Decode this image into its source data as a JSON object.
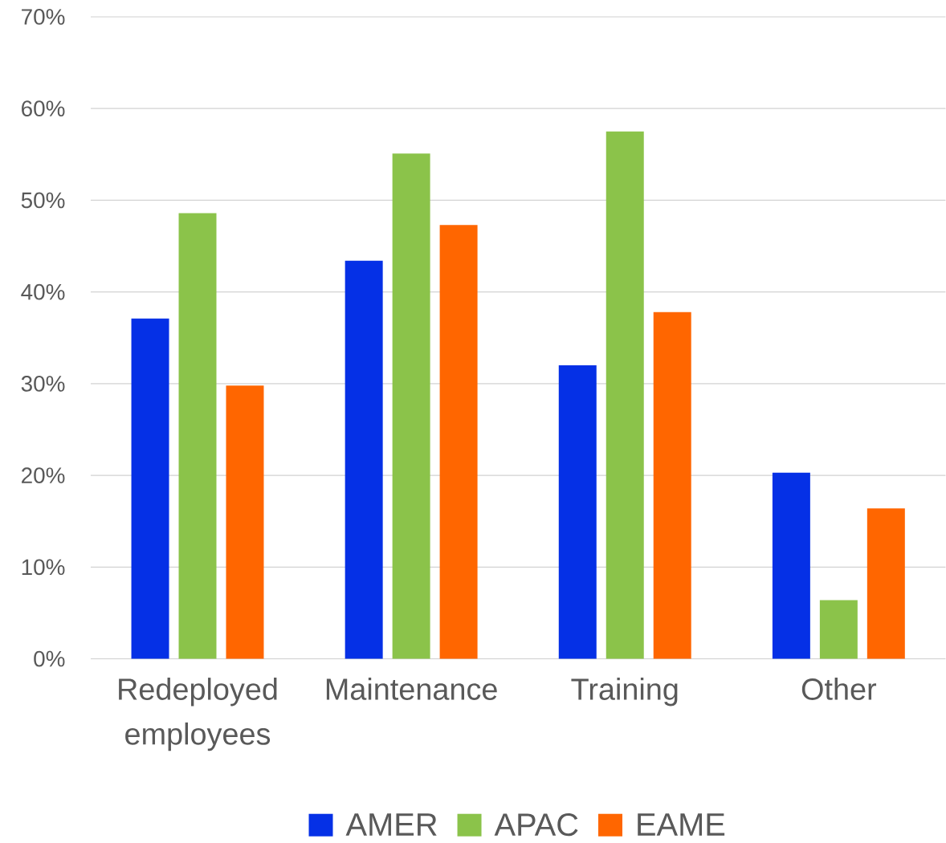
{
  "chart_data": {
    "type": "bar",
    "categories": [
      "Redeployed employees",
      "Maintenance",
      "Training",
      "Other"
    ],
    "series": [
      {
        "name": "AMER",
        "color": "#0530e6",
        "values": [
          37.1,
          43.4,
          32.0,
          20.3
        ]
      },
      {
        "name": "APAC",
        "color": "#8bc34a",
        "values": [
          48.6,
          55.1,
          57.5,
          6.4
        ]
      },
      {
        "name": "EAME",
        "color": "#ff6600",
        "values": [
          29.8,
          47.3,
          37.8,
          16.4
        ]
      }
    ],
    "ylim": [
      0,
      70
    ],
    "yticks": [
      {
        "value": 0,
        "label": "0%"
      },
      {
        "value": 10,
        "label": "10%"
      },
      {
        "value": 20,
        "label": "20%"
      },
      {
        "value": 30,
        "label": "30%"
      },
      {
        "value": 40,
        "label": "40%"
      },
      {
        "value": 50,
        "label": "50%"
      },
      {
        "value": 60,
        "label": "60%"
      },
      {
        "value": 70,
        "label": "70%"
      }
    ],
    "grid": "y",
    "legend": "bottom"
  }
}
